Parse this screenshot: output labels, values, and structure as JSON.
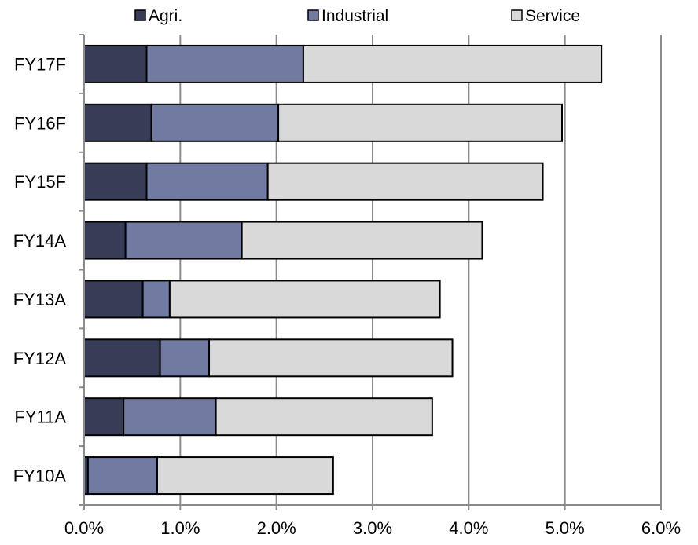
{
  "chart_data": {
    "type": "bar",
    "orientation": "horizontal",
    "stacked": true,
    "categories": [
      "FY17F",
      "FY16F",
      "FY15F",
      "FY14A",
      "FY13A",
      "FY12A",
      "FY11A",
      "FY10A"
    ],
    "series": [
      {
        "name": "Agri.",
        "color": "#383d57",
        "values": [
          0.65,
          0.7,
          0.65,
          0.43,
          0.61,
          0.79,
          0.41,
          0.04
        ]
      },
      {
        "name": "Industrial",
        "color": "#717ba1",
        "values": [
          1.63,
          1.32,
          1.26,
          1.21,
          0.28,
          0.51,
          0.96,
          0.72
        ]
      },
      {
        "name": "Service",
        "color": "#d9d9d9",
        "values": [
          3.1,
          2.95,
          2.86,
          2.5,
          2.81,
          2.53,
          2.25,
          1.83
        ]
      }
    ],
    "xlim": [
      0,
      6
    ],
    "xticks": [
      "0.0%",
      "1.0%",
      "2.0%",
      "3.0%",
      "4.0%",
      "5.0%",
      "6.0%"
    ],
    "value_unit": "%",
    "grid": "vertical",
    "legend": "top"
  }
}
